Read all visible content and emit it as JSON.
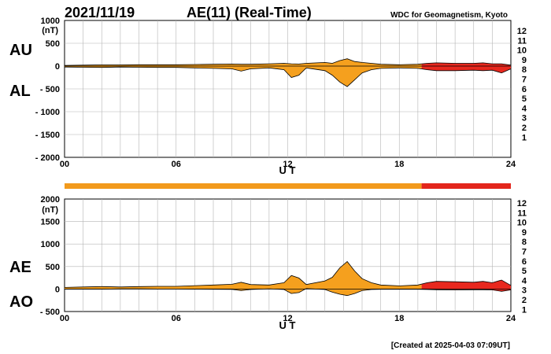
{
  "header": {
    "date": "2021/11/19",
    "title": "AE(11) (Real-Time)",
    "source": "WDC for Geomagnetism, Kyoto"
  },
  "footer": {
    "created": "[Created at 2025-04-03 07:09UT]"
  },
  "colors": {
    "grid": "#b4b4b4",
    "fill_orange": "#f5a01e",
    "fill_red": "#e8281e",
    "bar_orange": "#f29a1c",
    "bar_red": "#e3261c",
    "legend": [
      "#e8348c",
      "#e8281e",
      "#f5a01e",
      "#e8e83c",
      "#a0dc3c",
      "#3cc83c",
      "#3cc8c8",
      "#1e64e6",
      "#283cb4",
      "#c832c8",
      "#000000",
      "#6e6e6e",
      "#bebebe"
    ]
  },
  "legend_labels": [
    "12",
    "11",
    "10",
    "9",
    "8",
    "7",
    "6",
    "5",
    "4",
    "3",
    "2",
    "1"
  ],
  "chart_data": [
    {
      "id": "au-al",
      "type": "area",
      "series_labels": [
        "AU",
        "AL"
      ],
      "unit": "(nT)",
      "ylim": [
        -2000,
        1000
      ],
      "yticks": [
        "1000",
        "500",
        "0",
        "- 500",
        "- 1000",
        "- 1500",
        "- 2000"
      ],
      "xlim": [
        0,
        24
      ],
      "xticks": [
        "00",
        "06",
        "12",
        "18",
        "24"
      ],
      "xlabel": "U T",
      "grid": true,
      "red_from_hour": 19.2,
      "x": [
        0,
        1,
        2,
        3,
        4,
        5,
        6,
        7,
        8,
        9,
        9.5,
        10,
        11,
        11.8,
        12.2,
        12.6,
        13,
        14,
        14.4,
        14.8,
        15.2,
        15.6,
        16,
        16.5,
        17,
        18,
        19,
        19.5,
        20,
        21,
        22,
        22.5,
        23,
        23.5,
        24
      ],
      "au": [
        15,
        20,
        25,
        25,
        30,
        30,
        30,
        35,
        40,
        45,
        40,
        40,
        50,
        60,
        50,
        45,
        60,
        80,
        60,
        120,
        160,
        100,
        80,
        60,
        40,
        30,
        40,
        60,
        70,
        60,
        60,
        70,
        50,
        50,
        20
      ],
      "al": [
        -20,
        -25,
        -30,
        -20,
        -25,
        -30,
        -30,
        -40,
        -50,
        -60,
        -110,
        -60,
        -40,
        -80,
        -250,
        -200,
        -40,
        -100,
        -200,
        -350,
        -450,
        -300,
        -150,
        -80,
        -50,
        -40,
        -50,
        -80,
        -100,
        -100,
        -90,
        -100,
        -90,
        -150,
        -60
      ]
    },
    {
      "id": "ae-ao",
      "type": "area",
      "series_labels": [
        "AE",
        "AO"
      ],
      "unit": "(nT)",
      "ylim": [
        -500,
        2000
      ],
      "yticks": [
        "2000",
        "1500",
        "1000",
        "500",
        "0",
        "- 500"
      ],
      "xlim": [
        0,
        24
      ],
      "xticks": [
        "00",
        "06",
        "12",
        "18",
        "24"
      ],
      "xlabel": "U T",
      "grid": true,
      "red_from_hour": 19.2,
      "x": [
        0,
        1,
        2,
        3,
        4,
        5,
        6,
        7,
        8,
        9,
        9.5,
        10,
        11,
        11.8,
        12.2,
        12.6,
        13,
        14,
        14.4,
        14.8,
        15.2,
        15.6,
        16,
        16.5,
        17,
        18,
        19,
        19.5,
        20,
        21,
        22,
        22.5,
        23,
        23.5,
        24
      ],
      "ae": [
        35,
        45,
        55,
        45,
        55,
        60,
        60,
        75,
        90,
        105,
        150,
        100,
        90,
        140,
        300,
        245,
        100,
        180,
        260,
        470,
        610,
        400,
        230,
        140,
        90,
        70,
        90,
        140,
        170,
        160,
        150,
        170,
        140,
        200,
        80
      ],
      "ao": [
        -3,
        -3,
        -3,
        3,
        3,
        0,
        0,
        -3,
        -5,
        -8,
        -35,
        -10,
        5,
        -10,
        -100,
        -78,
        10,
        -10,
        -70,
        -115,
        -145,
        -100,
        -35,
        -10,
        -5,
        -5,
        -5,
        -10,
        -15,
        -20,
        -15,
        -15,
        -20,
        -50,
        -20
      ]
    }
  ]
}
